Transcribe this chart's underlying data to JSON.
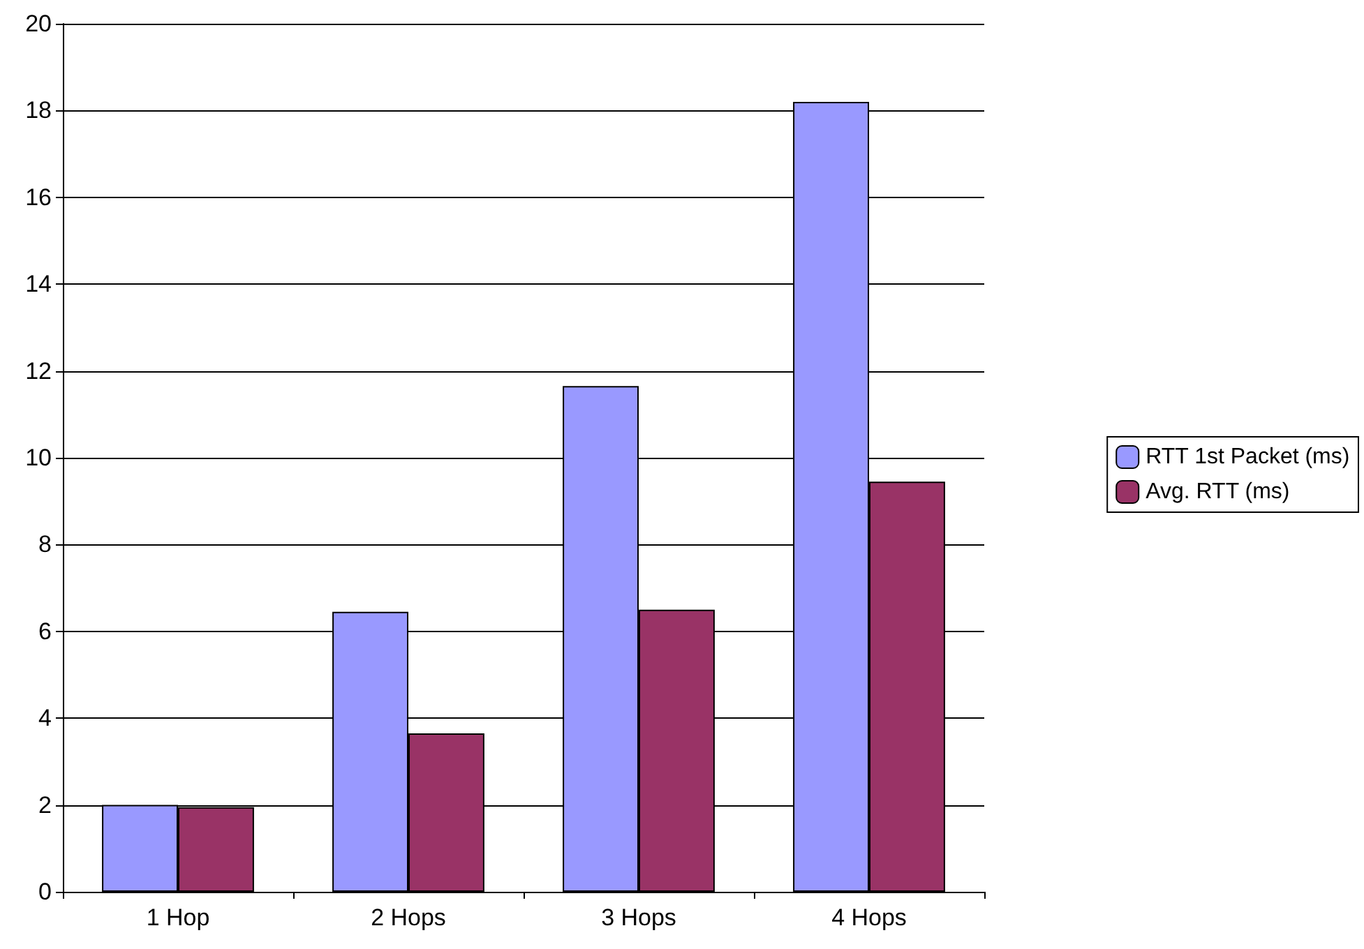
{
  "chart_data": {
    "type": "bar",
    "categories": [
      "1 Hop",
      "2 Hops",
      "3 Hops",
      "4 Hops"
    ],
    "series": [
      {
        "name": "RTT 1st Packet (ms)",
        "color": "#9999ff",
        "values": [
          2.0,
          6.45,
          11.65,
          18.2
        ]
      },
      {
        "name": "Avg. RTT (ms)",
        "color": "#993366",
        "values": [
          1.95,
          3.65,
          6.5,
          9.45
        ]
      }
    ],
    "ylim": [
      0,
      20
    ],
    "yticks": [
      0,
      2,
      4,
      6,
      8,
      10,
      12,
      14,
      16,
      18,
      20
    ],
    "grid": "y",
    "legend": "right"
  }
}
